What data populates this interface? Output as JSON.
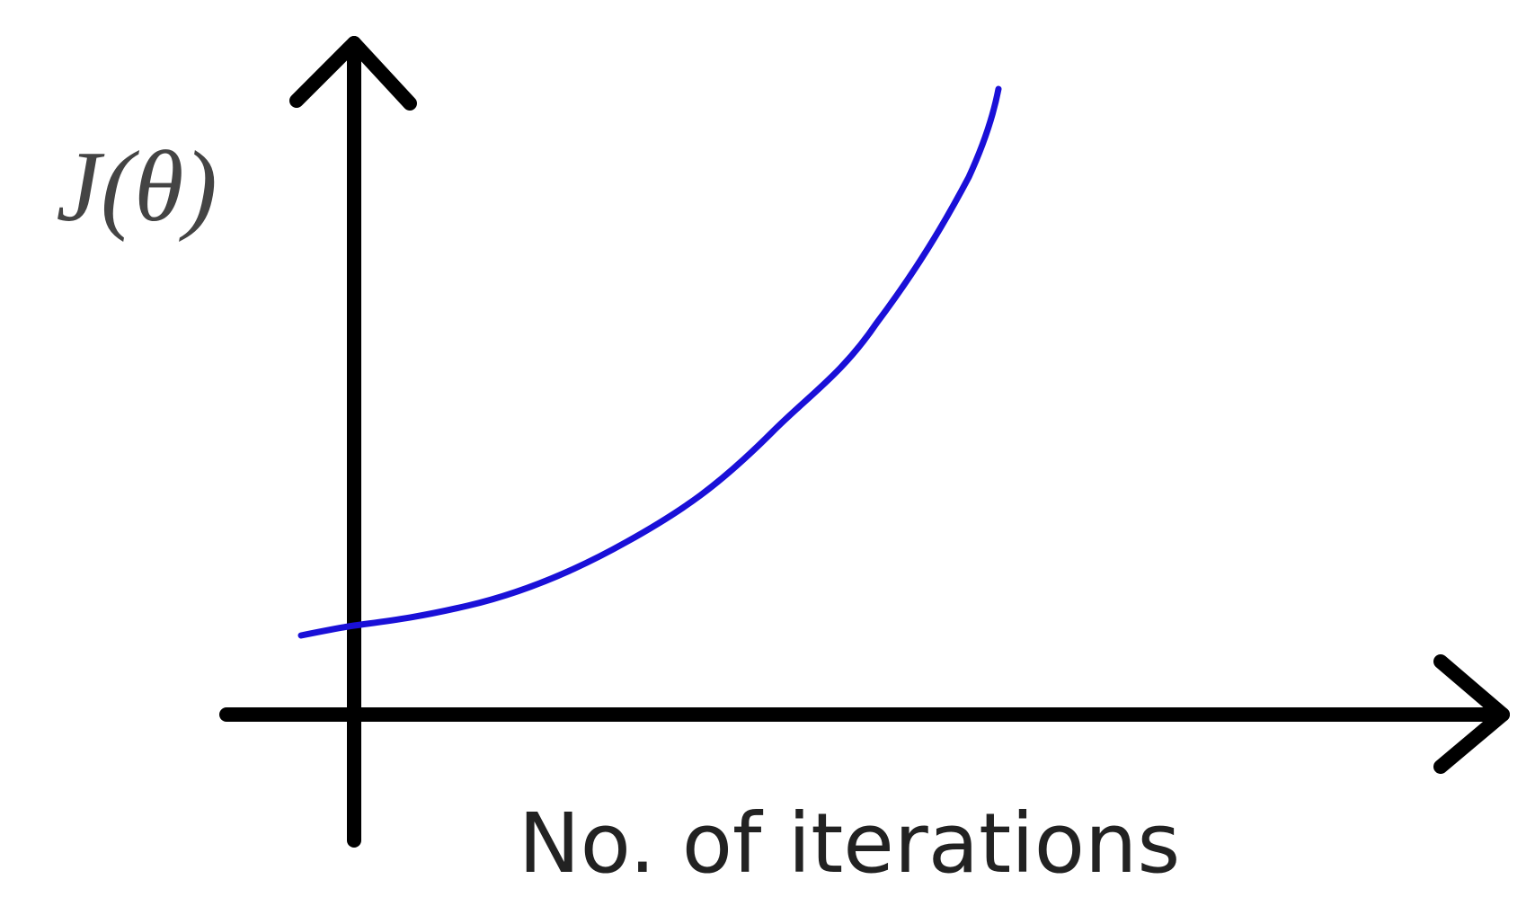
{
  "y_axis": {
    "label": "J(θ)"
  },
  "x_axis": {
    "label": "No. of iterations"
  }
}
